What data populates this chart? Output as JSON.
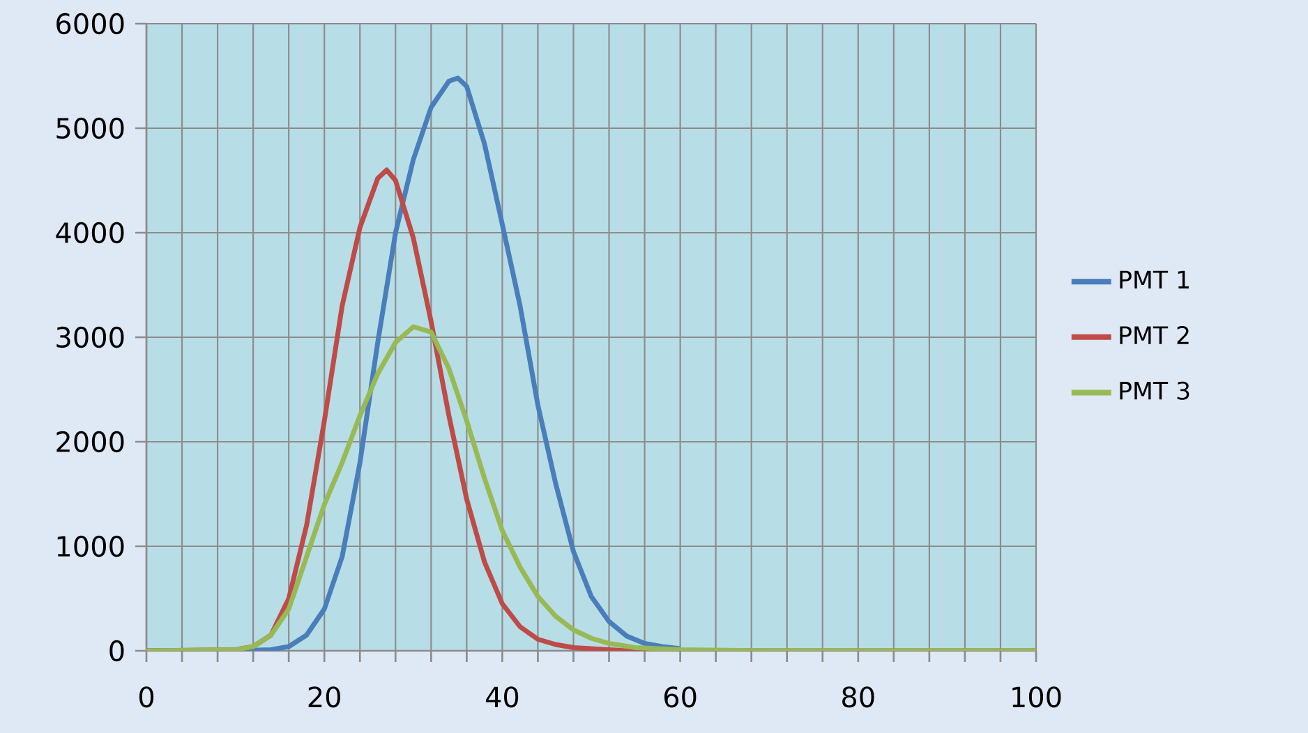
{
  "chart_data": {
    "type": "line",
    "xlim": [
      0,
      100
    ],
    "ylim": [
      0,
      6000
    ],
    "xticks": [
      0,
      {
        "value": 4,
        "label": null
      },
      {
        "value": 8,
        "label": null
      },
      {
        "value": 12,
        "label": null
      },
      {
        "value": 16,
        "label": null
      },
      20,
      {
        "value": 24,
        "label": null
      },
      {
        "value": 28,
        "label": null
      },
      {
        "value": 32,
        "label": null
      },
      {
        "value": 36,
        "label": null
      },
      40,
      {
        "value": 44,
        "label": null
      },
      {
        "value": 48,
        "label": null
      },
      {
        "value": 52,
        "label": null
      },
      {
        "value": 56,
        "label": null
      },
      60,
      {
        "value": 64,
        "label": null
      },
      {
        "value": 68,
        "label": null
      },
      {
        "value": 72,
        "label": null
      },
      {
        "value": 76,
        "label": null
      },
      80,
      {
        "value": 84,
        "label": null
      },
      {
        "value": 88,
        "label": null
      },
      {
        "value": 92,
        "label": null
      },
      {
        "value": 96,
        "label": null
      },
      100
    ],
    "yticks": [
      0,
      1000,
      2000,
      3000,
      4000,
      5000,
      6000
    ],
    "grid": true,
    "legend": "right",
    "marker": "none",
    "line_style": "solid",
    "series": [
      {
        "name": "PMT 1",
        "color": "#4a7ebb",
        "x": [
          0,
          10,
          14,
          16,
          18,
          20,
          22,
          24,
          26,
          28,
          30,
          32,
          34,
          35,
          36,
          38,
          40,
          42,
          44,
          46,
          48,
          50,
          52,
          54,
          56,
          58,
          60
        ],
        "values": [
          0,
          0,
          10,
          40,
          150,
          400,
          900,
          1800,
          2950,
          4000,
          4700,
          5200,
          5450,
          5480,
          5400,
          4850,
          4080,
          3300,
          2350,
          1600,
          950,
          520,
          280,
          140,
          70,
          40,
          20
        ]
      },
      {
        "name": "PMT 2",
        "color": "#be4b48",
        "x": [
          0,
          10,
          12,
          14,
          16,
          18,
          20,
          22,
          24,
          26,
          27,
          28,
          30,
          32,
          34,
          36,
          38,
          40,
          42,
          44,
          46,
          48,
          50,
          54,
          100
        ],
        "values": [
          0,
          10,
          40,
          150,
          500,
          1200,
          2200,
          3300,
          4050,
          4520,
          4600,
          4500,
          3950,
          3150,
          2250,
          1450,
          850,
          450,
          230,
          110,
          60,
          30,
          20,
          0,
          0
        ]
      },
      {
        "name": "PMT 3",
        "color": "#98b954",
        "x": [
          0,
          10,
          12,
          14,
          16,
          18,
          20,
          22,
          24,
          26,
          28,
          30,
          32,
          34,
          36,
          38,
          40,
          42,
          44,
          46,
          48,
          50,
          52,
          55,
          60,
          70,
          100
        ],
        "values": [
          0,
          10,
          40,
          150,
          400,
          900,
          1400,
          1800,
          2250,
          2650,
          2950,
          3100,
          3050,
          2700,
          2200,
          1650,
          1150,
          800,
          520,
          330,
          200,
          120,
          70,
          30,
          10,
          0,
          0
        ]
      }
    ]
  }
}
